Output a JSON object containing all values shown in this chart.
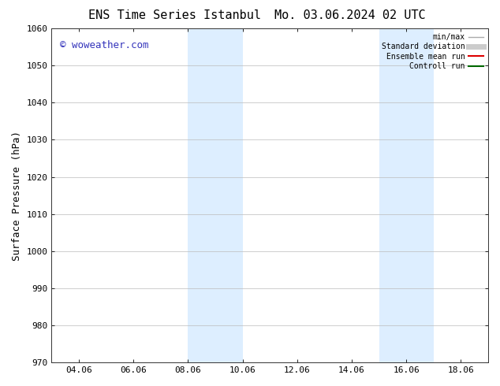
{
  "title_left": "ENS Time Series Istanbul",
  "title_right": "Mo. 03.06.2024 02 UTC",
  "ylabel": "Surface Pressure (hPa)",
  "ylim": [
    970,
    1060
  ],
  "yticks": [
    970,
    980,
    990,
    1000,
    1010,
    1020,
    1030,
    1040,
    1050,
    1060
  ],
  "xlim": [
    3.0,
    19.0
  ],
  "xtick_labels": [
    "04.06",
    "06.06",
    "08.06",
    "10.06",
    "12.06",
    "14.06",
    "16.06",
    "18.06"
  ],
  "xtick_positions": [
    4.0,
    6.0,
    8.0,
    10.0,
    12.0,
    14.0,
    16.0,
    18.0
  ],
  "shaded_bands": [
    {
      "x_start": 8.0,
      "x_end": 10.0
    },
    {
      "x_start": 15.0,
      "x_end": 17.0
    }
  ],
  "shade_color": "#ddeeff",
  "bg_color": "#ffffff",
  "watermark_text": "© woweather.com",
  "watermark_color": "#3333bb",
  "legend_entries": [
    {
      "label": "min/max",
      "color": "#aaaaaa",
      "linestyle": "-",
      "linewidth": 1.0
    },
    {
      "label": "Standard deviation",
      "color": "#cccccc",
      "linestyle": "-",
      "linewidth": 5
    },
    {
      "label": "Ensemble mean run",
      "color": "#dd0000",
      "linestyle": "-",
      "linewidth": 1.5
    },
    {
      "label": "Controll run",
      "color": "#006600",
      "linestyle": "-",
      "linewidth": 1.5
    }
  ],
  "grid_color": "#bbbbbb",
  "grid_linewidth": 0.5,
  "title_fontsize": 11,
  "ylabel_fontsize": 9,
  "tick_fontsize": 8,
  "legend_fontsize": 7,
  "watermark_fontsize": 9
}
